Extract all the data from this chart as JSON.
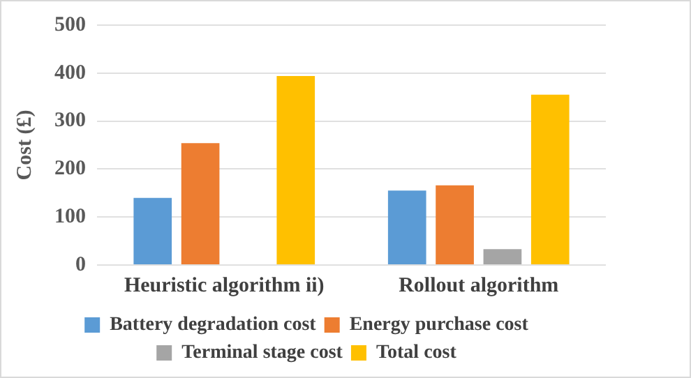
{
  "chart_data": {
    "type": "bar",
    "ylabel": "Cost (£)",
    "categories": [
      "Heuristic algorithm ii)",
      "Rollout algorithm"
    ],
    "series": [
      {
        "name": "Battery degradation cost",
        "color": "#5b9bd5",
        "values": [
          140,
          155
        ]
      },
      {
        "name": "Energy purchase cost",
        "color": "#ed7d31",
        "values": [
          254,
          166
        ]
      },
      {
        "name": "Terminal stage cost",
        "color": "#a5a5a5",
        "values": [
          0,
          33
        ]
      },
      {
        "name": "Total cost",
        "color": "#ffc000",
        "values": [
          394,
          355
        ]
      }
    ],
    "ylim": [
      0,
      500
    ],
    "yticks": [
      0,
      100,
      200,
      300,
      400,
      500
    ],
    "grid": "y",
    "legend": "bottom"
  }
}
